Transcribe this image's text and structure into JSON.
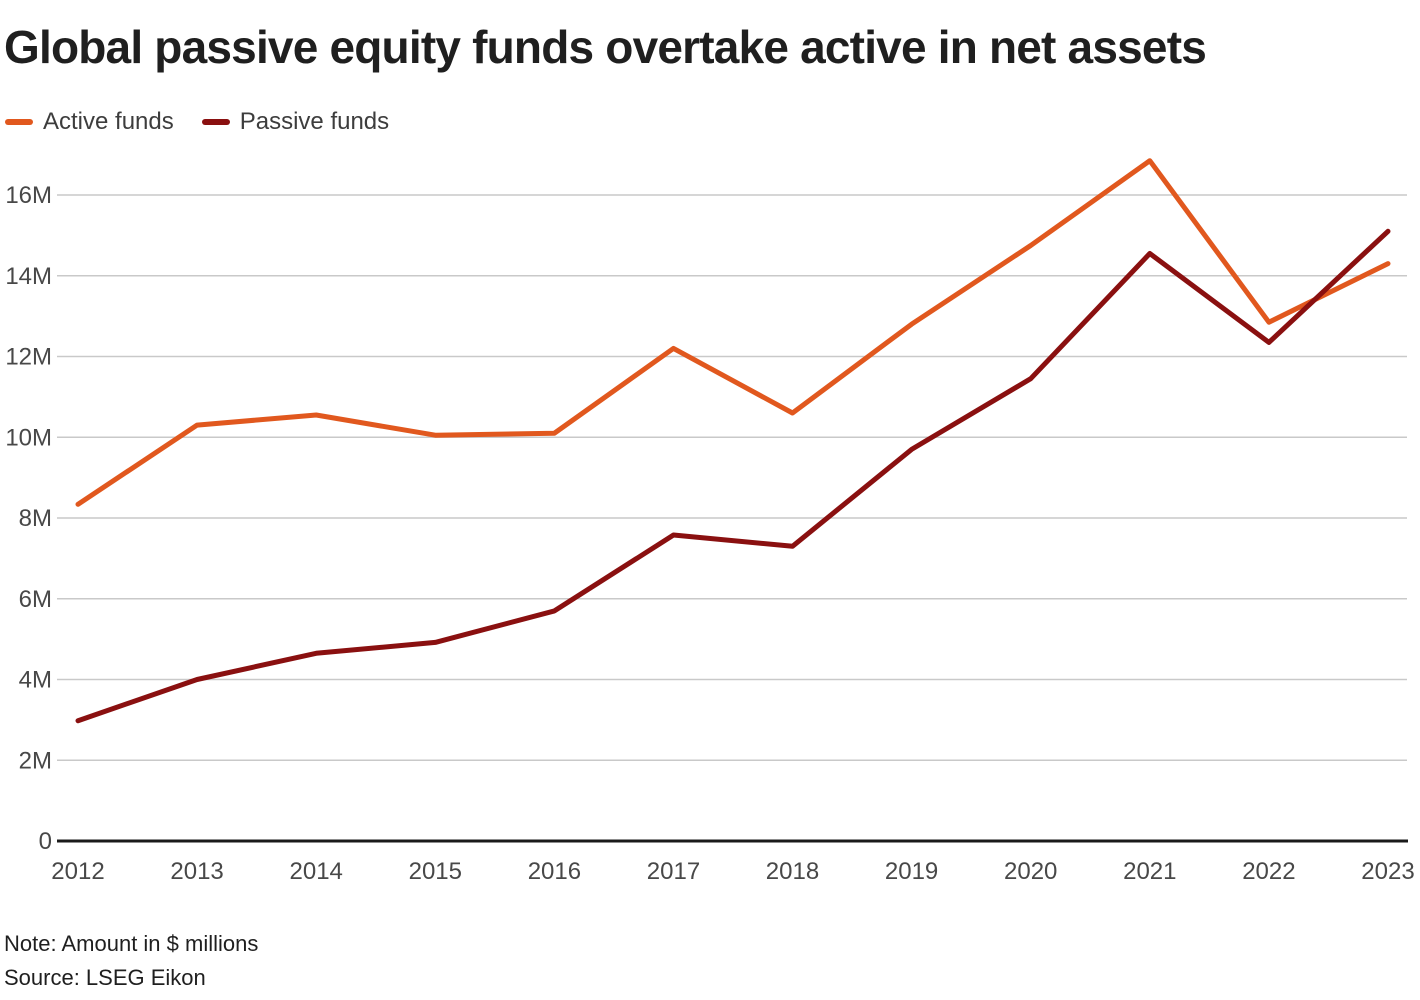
{
  "page": {
    "title": "Global passive equity funds overtake active in net assets",
    "note": "Note: Amount in $ millions",
    "source": "Source: LSEG Eikon"
  },
  "colors": {
    "active_line": "#E1581E",
    "passive_line": "#8A1010",
    "gridline": "#C9C9C9",
    "axis_line": "#1A1A1A",
    "tick_text": "#484848",
    "title_text": "#1F1F1F",
    "legend_text": "#3D3D3D"
  },
  "chart_data": {
    "type": "line",
    "title": "Global passive equity funds overtake active in net assets",
    "categories": [
      "2012",
      "2013",
      "2014",
      "2015",
      "2016",
      "2017",
      "2018",
      "2019",
      "2020",
      "2021",
      "2022",
      "2023"
    ],
    "series": [
      {
        "name": "Active funds",
        "color": "#E1581E",
        "values": [
          8.34,
          10.3,
          10.55,
          10.05,
          10.1,
          12.2,
          10.6,
          12.8,
          14.75,
          16.85,
          12.85,
          14.3
        ]
      },
      {
        "name": "Passive funds",
        "color": "#8A1010",
        "values": [
          2.98,
          4.0,
          4.65,
          4.92,
          5.7,
          7.58,
          7.3,
          9.7,
          11.45,
          14.55,
          12.35,
          15.1
        ]
      }
    ],
    "y_ticks": [
      {
        "value": 0,
        "label": "0"
      },
      {
        "value": 2,
        "label": "2M"
      },
      {
        "value": 4,
        "label": "4M"
      },
      {
        "value": 6,
        "label": "6M"
      },
      {
        "value": 8,
        "label": "8M"
      },
      {
        "value": 10,
        "label": "10M"
      },
      {
        "value": 12,
        "label": "12M"
      },
      {
        "value": 14,
        "label": "14M"
      },
      {
        "value": 16,
        "label": "16M"
      }
    ],
    "xlabel": "",
    "ylabel": "",
    "ylim": [
      0,
      17.2
    ],
    "grid": true,
    "legend_position": "top-left",
    "note": "Note: Amount in $ millions",
    "source": "Source: LSEG Eikon"
  }
}
